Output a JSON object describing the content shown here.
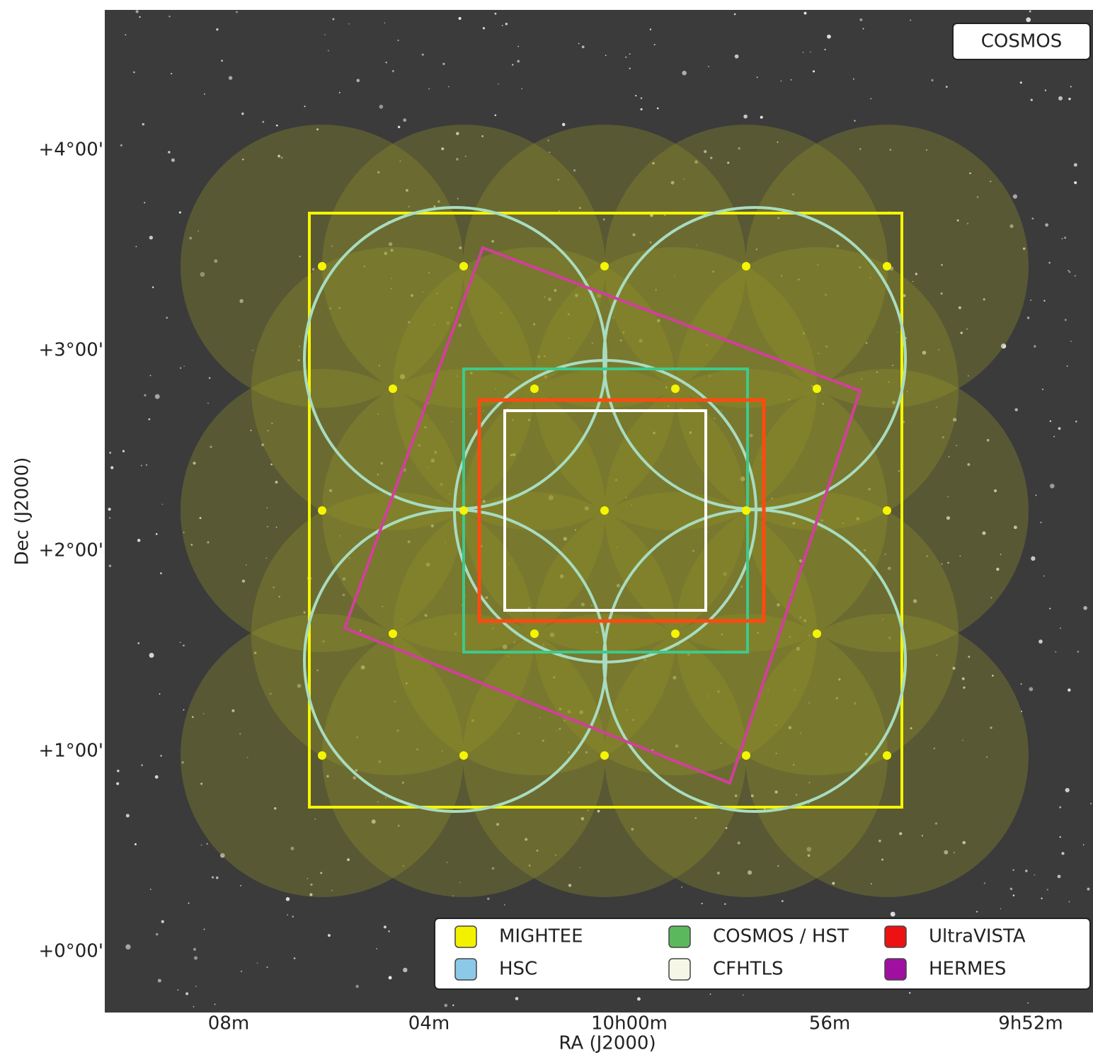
{
  "label": "COSMOS",
  "axes": {
    "x_label": "RA (J2000)",
    "y_label": "Dec (J2000)",
    "x_ticks": [
      "08m",
      "04m",
      "10h00m",
      "56m",
      "9h52m"
    ],
    "y_ticks": [
      "+4°00'",
      "+3°00'",
      "+2°00'",
      "+1°00'",
      "+0°00'"
    ]
  },
  "legend": [
    {
      "name": "MIGHTEE",
      "color": "#f2f200"
    },
    {
      "name": "COSMOS / HST",
      "color": "#5cb85c"
    },
    {
      "name": "UltraVISTA",
      "color": "#ee1111"
    },
    {
      "name": "HSC",
      "color": "#8cc8e8"
    },
    {
      "name": "CFHTLS",
      "color": "#f6f6e6"
    },
    {
      "name": "HERMES",
      "color": "#a010a0"
    }
  ]
}
